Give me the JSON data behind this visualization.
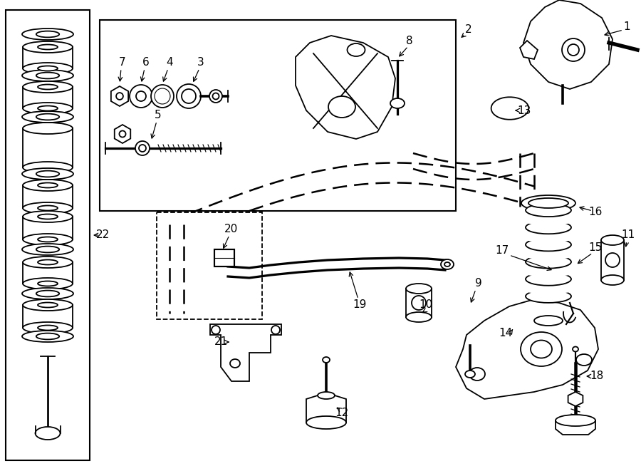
{
  "bg_color": "#ffffff",
  "line_color": "#000000",
  "fig_width": 9.0,
  "fig_height": 6.61,
  "lw": 1.3
}
